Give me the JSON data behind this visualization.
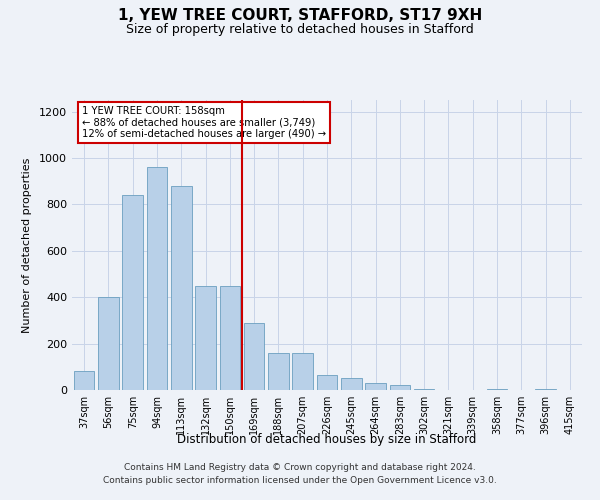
{
  "title": "1, YEW TREE COURT, STAFFORD, ST17 9XH",
  "subtitle": "Size of property relative to detached houses in Stafford",
  "xlabel": "Distribution of detached houses by size in Stafford",
  "ylabel": "Number of detached properties",
  "categories": [
    "37sqm",
    "56sqm",
    "75sqm",
    "94sqm",
    "113sqm",
    "132sqm",
    "150sqm",
    "169sqm",
    "188sqm",
    "207sqm",
    "226sqm",
    "245sqm",
    "264sqm",
    "283sqm",
    "302sqm",
    "321sqm",
    "339sqm",
    "358sqm",
    "377sqm",
    "396sqm",
    "415sqm"
  ],
  "values": [
    80,
    400,
    840,
    960,
    880,
    450,
    450,
    290,
    160,
    160,
    65,
    50,
    30,
    20,
    5,
    0,
    0,
    5,
    0,
    5,
    0
  ],
  "bar_color": "#b8d0e8",
  "bar_edge_color": "#6a9fc0",
  "annotation_text_line1": "1 YEW TREE COURT: 158sqm",
  "annotation_text_line2": "← 88% of detached houses are smaller (3,749)",
  "annotation_text_line3": "12% of semi-detached houses are larger (490) →",
  "annotation_box_color": "#ffffff",
  "annotation_box_edge_color": "#cc0000",
  "red_line_color": "#cc0000",
  "grid_color": "#c8d4e8",
  "ylim": [
    0,
    1250
  ],
  "yticks": [
    0,
    200,
    400,
    600,
    800,
    1000,
    1200
  ],
  "footer_line1": "Contains HM Land Registry data © Crown copyright and database right 2024.",
  "footer_line2": "Contains public sector information licensed under the Open Government Licence v3.0.",
  "bg_color": "#eef2f8"
}
